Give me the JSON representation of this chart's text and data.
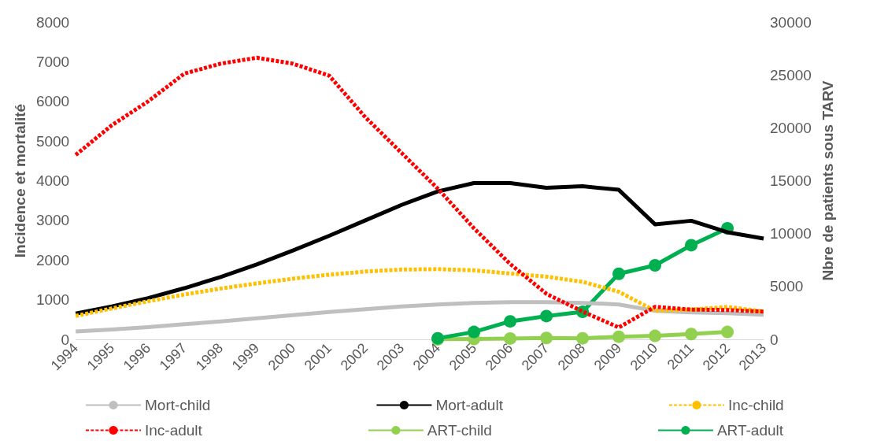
{
  "chart_data": {
    "type": "line",
    "ylabel": "Incidence et mortalité",
    "y2label": "Nbre de patients sous TARV",
    "categories": [
      "1994",
      "1995",
      "1996",
      "1997",
      "1998",
      "1999",
      "2000",
      "2001",
      "2002",
      "2003",
      "2004",
      "2005",
      "2006",
      "2007",
      "2008",
      "2009",
      "2010",
      "2011",
      "2012",
      "2013"
    ],
    "ylim": [
      0,
      8000
    ],
    "yticks": [
      0,
      1000,
      2000,
      3000,
      4000,
      5000,
      6000,
      7000,
      8000
    ],
    "y2lim": [
      0,
      30000
    ],
    "y2ticks": [
      0,
      5000,
      10000,
      15000,
      20000,
      25000,
      30000
    ],
    "grid": false,
    "legend": "bottom",
    "series": [
      {
        "name": "Mort-child",
        "color": "#bfbfbf",
        "line_style": "solid",
        "marker": "none",
        "values": [
          200,
          250,
          310,
          380,
          450,
          530,
          610,
          690,
          760,
          830,
          880,
          920,
          940,
          940,
          920,
          880,
          720,
          680,
          660,
          620
        ]
      },
      {
        "name": "Mort-adult",
        "color": "#000000",
        "line_style": "solid",
        "marker": "none",
        "values": [
          650,
          830,
          1040,
          1290,
          1570,
          1890,
          2240,
          2610,
          3000,
          3390,
          3730,
          3940,
          3940,
          3820,
          3860,
          3770,
          2900,
          2990,
          2700,
          2540
        ]
      },
      {
        "name": "Inc-child",
        "color": "#ffc000",
        "line_style": "dashed",
        "marker": "none",
        "values": [
          590,
          780,
          960,
          1130,
          1280,
          1410,
          1530,
          1630,
          1710,
          1760,
          1770,
          1740,
          1660,
          1580,
          1450,
          1200,
          720,
          750,
          820,
          700
        ]
      },
      {
        "name": "Inc-adult",
        "color": "#ff0000",
        "line_style": "dashed",
        "marker": "none",
        "values": [
          4650,
          5400,
          6000,
          6700,
          6950,
          7100,
          6950,
          6650,
          5600,
          4700,
          3800,
          2800,
          1900,
          1150,
          700,
          300,
          820,
          750,
          740,
          700
        ]
      },
      {
        "name": "ART-child",
        "color": "#92d050",
        "line_style": "solid",
        "marker": "circle",
        "axis": "y2",
        "values": [
          null,
          null,
          null,
          null,
          null,
          null,
          null,
          null,
          null,
          null,
          0,
          30,
          80,
          130,
          100,
          250,
          330,
          500,
          700,
          null
        ]
      },
      {
        "name": "ART-adult",
        "color": "#00b050",
        "line_style": "solid",
        "marker": "circle",
        "axis": "y2",
        "values": [
          null,
          null,
          null,
          null,
          null,
          null,
          null,
          null,
          null,
          null,
          100,
          700,
          1700,
          2200,
          2600,
          6200,
          7000,
          8900,
          10500,
          null
        ]
      }
    ]
  }
}
